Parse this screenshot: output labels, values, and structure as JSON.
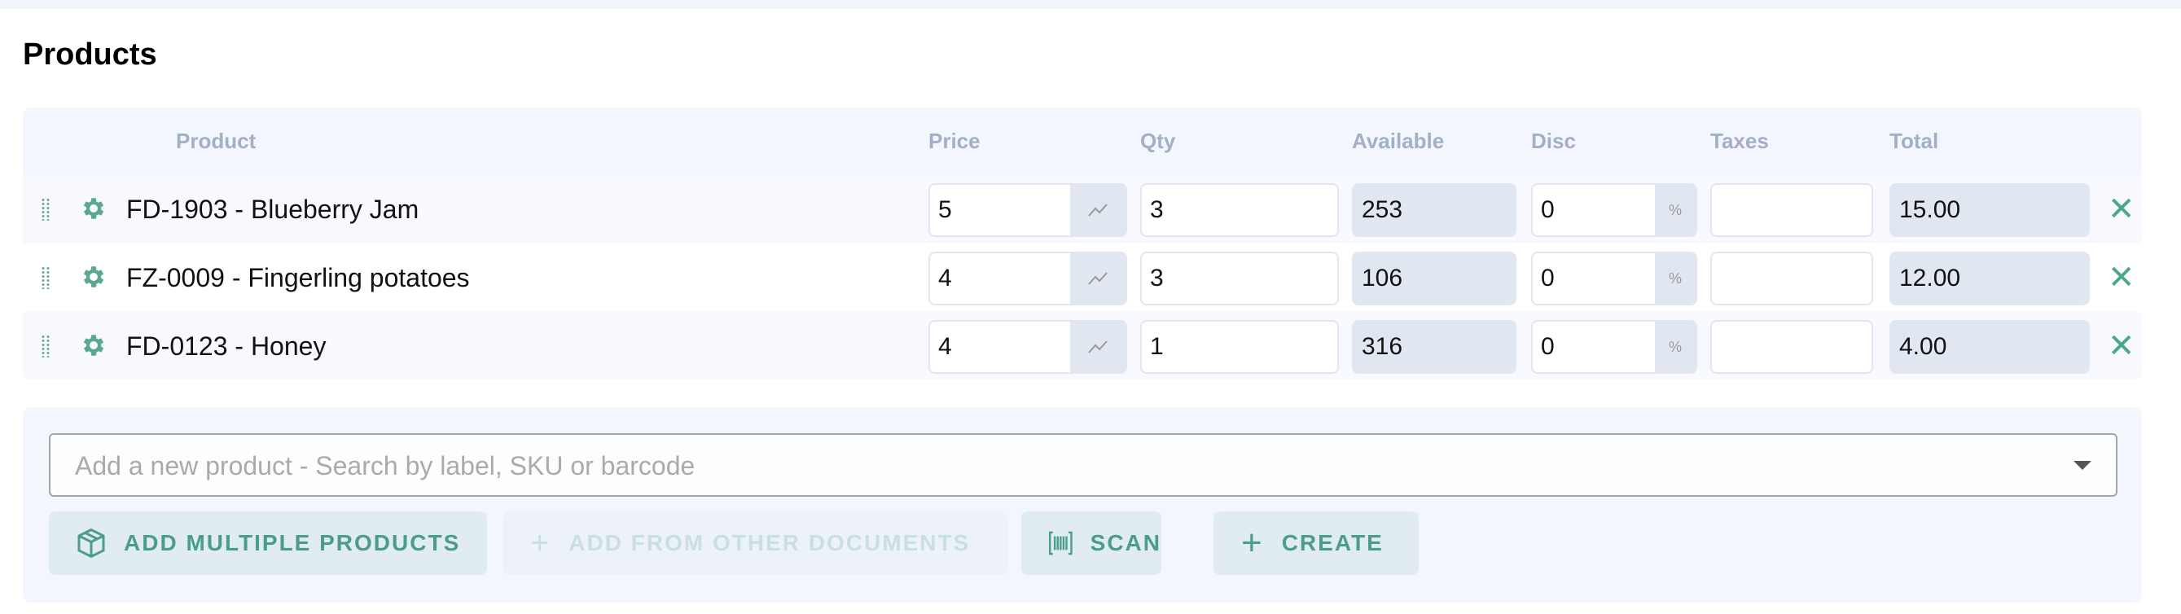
{
  "title": "Products",
  "columns": [
    "Product",
    "Price",
    "Qty",
    "Available",
    "Disc",
    "Taxes",
    "Total"
  ],
  "rows": [
    {
      "product": "FD-1903 - Blueberry Jam",
      "price": "5",
      "qty": "3",
      "available": "253",
      "disc": "0",
      "taxes": "",
      "total": "15.00"
    },
    {
      "product": "FZ-0009 - Fingerling potatoes",
      "price": "4",
      "qty": "3",
      "available": "106",
      "disc": "0",
      "taxes": "",
      "total": "12.00"
    },
    {
      "product": "FD-0123 - Honey",
      "price": "4",
      "qty": "1",
      "available": "316",
      "disc": "0",
      "taxes": "",
      "total": "4.00"
    }
  ],
  "disc_unit": "%",
  "search": {
    "placeholder": "Add a new product - Search by label, SKU or barcode"
  },
  "buttons": {
    "add_multiple": "ADD MULTIPLE PRODUCTS",
    "add_from_docs": "ADD FROM OTHER DOCUMENTS",
    "scan": "SCAN",
    "create": "CREATE"
  },
  "colors": {
    "accent": "#4aa88a",
    "panel": "#f3f6fd",
    "readonly": "#e1e7f1",
    "header_text": "#a3afc6"
  }
}
